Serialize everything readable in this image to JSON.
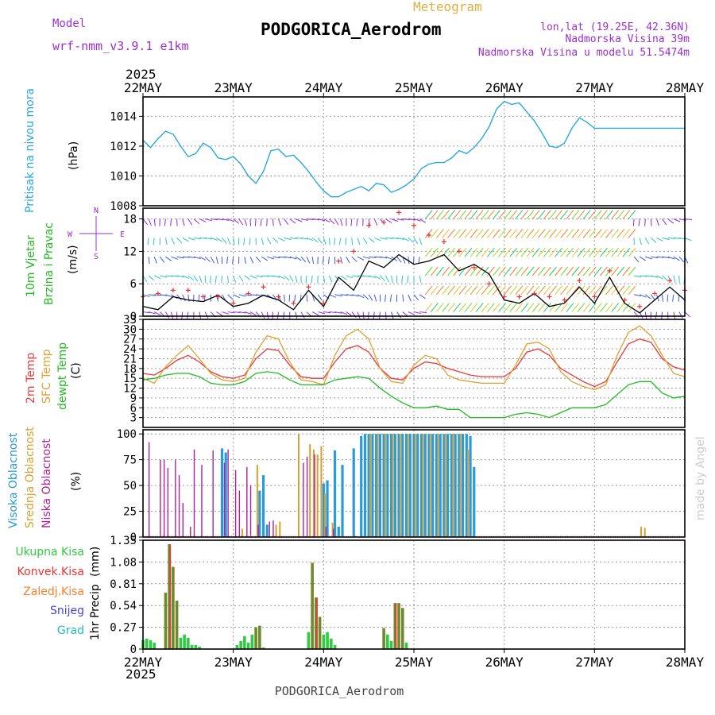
{
  "header": {
    "model_label": "Model",
    "model_name": "wrf-nmm_v3.9.1 e1km",
    "title": "PODGORICA_Aerodrom",
    "subtitle": "Meteogram",
    "lonlat": "lon,lat (19.25E, 42.36N)",
    "elevation": "Nadmorska Visina 39m",
    "elevation_model": "Nadmorska Visina u modelu 51.5474m",
    "year": "2025",
    "footer": "PODGORICA_Aerodrom",
    "credit": "made by Angel"
  },
  "colors": {
    "pressure": "#2aa7e0",
    "temp2m": "#e8383b",
    "sfc": "#e0a030",
    "dewpt": "#22bb22",
    "wind_speed": "#000000",
    "gust": "#ee3333",
    "cloud_high": "#2a9bd8",
    "cloud_mid": "#d8a030",
    "cloud_low": "#b0209a",
    "precip_total": "#2ecc40",
    "precip_conv": "#ee3333",
    "precip_strat": "#ff7f27",
    "snow": "#4444dd",
    "graupel": "#22bbbb",
    "bar_brown": "#6f8a2a",
    "axis_label_purple": "#9b30d0",
    "axis_label_gold": "#e0b040"
  },
  "x_axis": {
    "ticks": [
      "22MAY",
      "23MAY",
      "24MAY",
      "25MAY",
      "26MAY",
      "27MAY",
      "28MAY"
    ],
    "hours_total": 144
  },
  "chart_data": [
    {
      "type": "line",
      "name": "pressure",
      "ylabel": "Pritisak na nivou mora",
      "unit": "(hPa)",
      "ylim": [
        1008,
        1015.3
      ],
      "yticks": [
        "1008",
        "1010",
        "1012",
        "1014"
      ],
      "ytick_values": [
        1008,
        1010,
        1012,
        1014
      ],
      "grid": true,
      "series": [
        {
          "x": [
            0,
            2,
            4,
            6,
            8,
            10,
            12,
            14,
            16,
            18,
            20,
            22,
            24,
            26,
            28,
            30,
            32,
            34,
            36,
            38,
            40,
            42,
            44,
            46,
            48,
            50,
            52,
            54,
            56,
            58,
            60,
            62,
            64,
            66,
            68,
            70,
            72,
            74,
            76,
            78,
            80,
            82,
            84,
            86,
            88,
            90,
            92,
            94,
            96,
            98,
            100,
            102,
            104,
            106,
            108,
            110,
            112,
            114,
            116,
            118,
            120,
            122,
            124,
            126,
            128,
            130,
            132,
            134,
            136,
            138,
            140,
            142,
            144
          ],
          "y": [
            1012.4,
            1011.9,
            1012.5,
            1013.0,
            1012.8,
            1012.0,
            1011.3,
            1011.5,
            1012.2,
            1011.9,
            1011.2,
            1011.1,
            1011.3,
            1010.8,
            1010.0,
            1009.5,
            1010.3,
            1011.7,
            1011.8,
            1011.3,
            1011.4,
            1010.9,
            1010.3,
            1009.6,
            1009.0,
            1008.6,
            1008.6,
            1008.9,
            1009.1,
            1009.3,
            1009.0,
            1009.5,
            1009.4,
            1008.9,
            1009.1,
            1009.4,
            1009.8,
            1010.5,
            1010.8,
            1010.9,
            1010.9,
            1011.2,
            1011.7,
            1011.5,
            1011.9,
            1012.5,
            1013.3,
            1014.5,
            1015.0,
            1014.8,
            1014.9,
            1014.3,
            1013.7,
            1012.9,
            1012.0,
            1011.9,
            1012.2,
            1013.2,
            1013.9,
            1013.6,
            1013.2,
            1013.2,
            1013.2,
            1013.2,
            1013.2,
            1013.2,
            1013.2,
            1013.2,
            1013.2,
            1013.2,
            1013.2,
            1013.2,
            1013.2
          ]
        }
      ]
    },
    {
      "type": "line",
      "name": "wind",
      "ylabel": [
        "10m Vjetar",
        "Brzina i Pravac"
      ],
      "unit": "(m/s)",
      "compass": {
        "n": "N",
        "e": "E",
        "w": "W",
        "s": "S"
      },
      "ylim": [
        0,
        20
      ],
      "yticks": [
        "0",
        "6",
        "12",
        "18"
      ],
      "ytick_values": [
        0,
        6,
        12,
        18
      ],
      "grid": true,
      "series": [
        {
          "name": "speed",
          "x": [
            0,
            4,
            8,
            12,
            16,
            20,
            24,
            28,
            32,
            36,
            40,
            44,
            48,
            52,
            56,
            60,
            64,
            68,
            72,
            76,
            80,
            84,
            88,
            92,
            96,
            100,
            104,
            108,
            112,
            116,
            120,
            124,
            128,
            132,
            136,
            140,
            144
          ],
          "y": [
            1.8,
            1.2,
            3.6,
            3.0,
            2.7,
            3.9,
            1.8,
            2.4,
            3.9,
            3.0,
            1.2,
            4.8,
            1.8,
            7.2,
            4.8,
            10.2,
            9.0,
            11.4,
            9.6,
            10.2,
            11.4,
            8.4,
            9.6,
            7.8,
            3.0,
            2.4,
            4.2,
            1.8,
            2.4,
            5.4,
            2.4,
            7.2,
            2.4,
            0.6,
            3.0,
            5.4,
            3.0
          ]
        },
        {
          "name": "gust",
          "x": [
            0,
            4,
            8,
            12,
            16,
            20,
            24,
            28,
            32,
            36,
            40,
            44,
            48,
            52,
            56,
            60,
            64,
            68,
            72,
            76,
            80,
            84,
            88,
            92,
            96,
            100,
            104,
            108,
            112,
            116,
            120,
            124,
            128,
            132,
            136,
            140,
            144
          ],
          "y": [
            3.6,
            4.2,
            4.8,
            4.8,
            3.6,
            3.6,
            2.4,
            4.2,
            5.4,
            3.6,
            2.4,
            5.4,
            2.4,
            10.2,
            12.0,
            16.8,
            17.4,
            19.2,
            16.8,
            15.0,
            13.8,
            12.0,
            9.0,
            6.0,
            3.6,
            3.6,
            4.2,
            3.6,
            3.0,
            6.6,
            3.6,
            8.4,
            3.0,
            1.8,
            4.2,
            6.6,
            4.8
          ]
        }
      ]
    },
    {
      "type": "line",
      "name": "temperature",
      "ylabel": [
        "2m Temp",
        "SFC Temp",
        "dewpt Temp"
      ],
      "unit": "(C)",
      "ylim": [
        0,
        33
      ],
      "yticks": [
        "3",
        "6",
        "9",
        "12",
        "15",
        "18",
        "21",
        "24",
        "27",
        "30",
        "33"
      ],
      "ytick_values": [
        3,
        6,
        9,
        12,
        15,
        18,
        21,
        24,
        27,
        30,
        33
      ],
      "grid": true,
      "series": [
        {
          "name": "2m Temp",
          "x": [
            0,
            3,
            6,
            9,
            12,
            15,
            18,
            21,
            24,
            27,
            30,
            33,
            36,
            39,
            42,
            45,
            48,
            51,
            54,
            57,
            60,
            63,
            66,
            69,
            72,
            75,
            78,
            81,
            84,
            87,
            90,
            93,
            96,
            99,
            102,
            105,
            108,
            111,
            114,
            117,
            120,
            123,
            126,
            129,
            132,
            135,
            138,
            141,
            144
          ],
          "y": [
            16.5,
            16,
            18,
            20.5,
            22,
            20,
            17,
            15.5,
            15,
            16,
            21,
            24,
            23.5,
            19,
            15.5,
            15,
            15,
            20,
            24,
            25,
            23,
            18,
            15,
            14.5,
            18,
            20,
            19.5,
            18,
            17,
            16,
            15.5,
            15.5,
            15.5,
            18,
            23,
            24,
            22,
            18,
            16,
            14,
            12.5,
            14,
            20,
            25.5,
            27,
            26,
            21,
            18.5,
            17.5
          ]
        },
        {
          "name": "SFC Temp",
          "x": [
            0,
            3,
            6,
            9,
            12,
            15,
            18,
            21,
            24,
            27,
            30,
            33,
            36,
            39,
            42,
            45,
            48,
            51,
            54,
            57,
            60,
            63,
            66,
            69,
            72,
            75,
            78,
            81,
            84,
            87,
            90,
            93,
            96,
            99,
            102,
            105,
            108,
            111,
            114,
            117,
            120,
            123,
            126,
            129,
            132,
            135,
            138,
            141,
            144
          ],
          "y": [
            15,
            13.5,
            18.5,
            22,
            25,
            21,
            16.5,
            14.5,
            14,
            15,
            23,
            28,
            27,
            20,
            14.5,
            14,
            13,
            22,
            28,
            30,
            27,
            18,
            14,
            13.5,
            19,
            22,
            21,
            16,
            14.5,
            14,
            13.5,
            13.5,
            13.5,
            19,
            25.5,
            26,
            24,
            17,
            14,
            12.5,
            11.5,
            13,
            22,
            29,
            31,
            28,
            22,
            16.5,
            15.5
          ]
        },
        {
          "name": "dewpt Temp",
          "x": [
            0,
            3,
            6,
            9,
            12,
            15,
            18,
            21,
            24,
            27,
            30,
            33,
            36,
            39,
            42,
            45,
            48,
            51,
            54,
            57,
            60,
            63,
            66,
            69,
            72,
            75,
            78,
            81,
            84,
            87,
            90,
            93,
            96,
            99,
            102,
            105,
            108,
            111,
            114,
            117,
            120,
            123,
            126,
            129,
            132,
            135,
            138,
            141,
            144
          ],
          "y": [
            14.5,
            15,
            16,
            16.5,
            16.5,
            15.5,
            13.5,
            13,
            13,
            14,
            16.5,
            17,
            16.5,
            14.5,
            13,
            13,
            13,
            14.5,
            15,
            15.5,
            15,
            12,
            9.5,
            7.5,
            6,
            6,
            6.5,
            5.5,
            5.5,
            3,
            3,
            3,
            3,
            4,
            4.5,
            4,
            3,
            4.5,
            6,
            6,
            6,
            7,
            10,
            13,
            14,
            14,
            10.5,
            9,
            9.5
          ]
        }
      ]
    },
    {
      "type": "bar",
      "name": "clouds",
      "ylabel": [
        "Visoka Oblacnost",
        "Srednja Oblacnost",
        "Niska Oblacnost"
      ],
      "unit": "(%)",
      "ylim": [
        0,
        104
      ],
      "yticks": [
        "0",
        "25",
        "50",
        "75",
        "100"
      ],
      "ytick_values": [
        0,
        25,
        50,
        75,
        100
      ],
      "grid": true,
      "series": [
        {
          "name": "high",
          "x": [
            21,
            22,
            31,
            32,
            33,
            48,
            49,
            51,
            52,
            53,
            56,
            58,
            59,
            60,
            61,
            62,
            63,
            64,
            65,
            66,
            67,
            68,
            69,
            70,
            71,
            72,
            73,
            74,
            75,
            76,
            77,
            78,
            79,
            80,
            81,
            82,
            83,
            84,
            85,
            86,
            87,
            88
          ],
          "y": [
            86,
            82,
            45,
            60,
            12,
            52,
            55,
            84,
            10,
            70,
            86,
            98,
            100,
            100,
            100,
            100,
            100,
            100,
            100,
            100,
            100,
            100,
            100,
            100,
            100,
            100,
            100,
            100,
            100,
            100,
            100,
            100,
            100,
            100,
            100,
            100,
            100,
            100,
            100,
            100,
            98,
            68
          ]
        },
        {
          "name": "mid",
          "x": [
            26,
            30,
            35,
            36,
            41,
            44,
            45,
            46,
            47,
            48,
            50,
            60,
            62,
            64,
            66,
            68,
            70,
            72,
            74,
            76,
            78,
            80,
            82,
            84,
            86,
            132,
            133
          ],
          "y": [
            8,
            70,
            12,
            15,
            100,
            90,
            85,
            80,
            88,
            42,
            14,
            100,
            100,
            100,
            100,
            100,
            100,
            100,
            100,
            100,
            100,
            100,
            100,
            100,
            85,
            10,
            9
          ]
        },
        {
          "name": "low",
          "x": [
            2,
            5,
            6,
            7,
            9,
            10,
            11,
            13,
            14,
            16,
            19,
            22,
            23,
            25,
            26,
            28,
            29,
            31,
            34,
            35,
            43,
            44,
            46,
            49,
            51
          ],
          "y": [
            92,
            75,
            75,
            67,
            75,
            60,
            33,
            10,
            85,
            70,
            84,
            72,
            85,
            65,
            45,
            68,
            50,
            12,
            15,
            16,
            72,
            78,
            80,
            10,
            8
          ]
        }
      ]
    },
    {
      "type": "bar",
      "name": "precipitation",
      "ylabel": "1hr Precip",
      "unit": "(mm)",
      "legend": [
        "Ukupna Kisa",
        "Konvek.Kisa",
        "Zaledj.Kisa",
        "Snijeg",
        "Grad"
      ],
      "ylim": [
        0,
        1.35
      ],
      "yticks": [
        "0",
        "0.27",
        "0.54",
        "0.81",
        "1.08",
        "1.35"
      ],
      "ytick_values": [
        0,
        0.27,
        0.54,
        0.81,
        1.08,
        1.35
      ],
      "grid": true,
      "series": [
        {
          "name": "Ukupna Kisa",
          "x": [
            0,
            1,
            2,
            3,
            6,
            7,
            8,
            9,
            10,
            11,
            12,
            13,
            14,
            15,
            25,
            26,
            27,
            28,
            29,
            30,
            31,
            32,
            44,
            45,
            46,
            47,
            48,
            49,
            50,
            51,
            64,
            65,
            66,
            67,
            68,
            69,
            70
          ],
          "y": [
            0.11,
            0.13,
            0.11,
            0.08,
            0.7,
            1.3,
            1.02,
            0.6,
            0.14,
            0.18,
            0.14,
            0.05,
            0.05,
            0.03,
            0.05,
            0.1,
            0.16,
            0.08,
            0.18,
            0.27,
            0.29,
            0.02,
            0.21,
            1.07,
            0.64,
            0.4,
            0.18,
            0.21,
            0.13,
            0.05,
            0.26,
            0.18,
            0.1,
            0.57,
            0.57,
            0.51,
            0.08
          ]
        },
        {
          "name": "Konvek.Kisa",
          "x": [
            7,
            46,
            67
          ],
          "y": [
            1.3,
            0.64,
            0.57
          ]
        }
      ]
    }
  ]
}
